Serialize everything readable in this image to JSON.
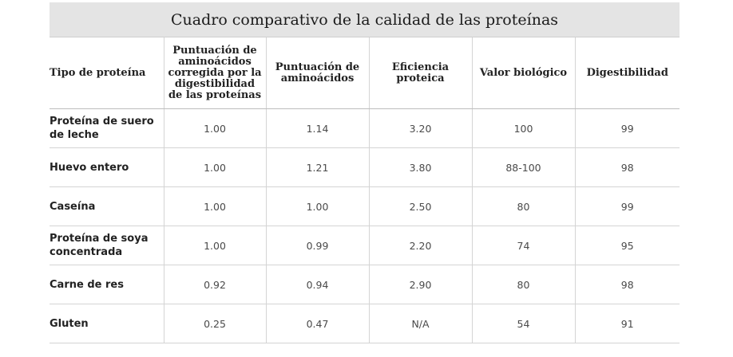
{
  "title": "Cuadro comparativo de la calidad de las proteínas",
  "headers": [
    "Tipo de proteína",
    "Puntuación de aminoácidos corregida por la digestibilidad de las proteínas",
    "Puntuación de aminoácidos",
    "Eficiencia proteica",
    "Valor biológico",
    "Digestibilidad"
  ],
  "rows": [
    [
      "Proteína de suero de leche",
      "1.00",
      "1.14",
      "3.20",
      "100",
      "99"
    ],
    [
      "Huevo entero",
      "1.00",
      "1.21",
      "3.80",
      "88-100",
      "98"
    ],
    [
      "Caseína",
      "1.00",
      "1.00",
      "2.50",
      "80",
      "99"
    ],
    [
      "Proteína de soya concentrada",
      "1.00",
      "0.99",
      "2.20",
      "74",
      "95"
    ],
    [
      "Carne de res",
      "0.92",
      "0.94",
      "2.90",
      "80",
      "98"
    ],
    [
      "Gluten",
      "0.25",
      "0.47",
      "N/A",
      "54",
      "91"
    ]
  ]
}
